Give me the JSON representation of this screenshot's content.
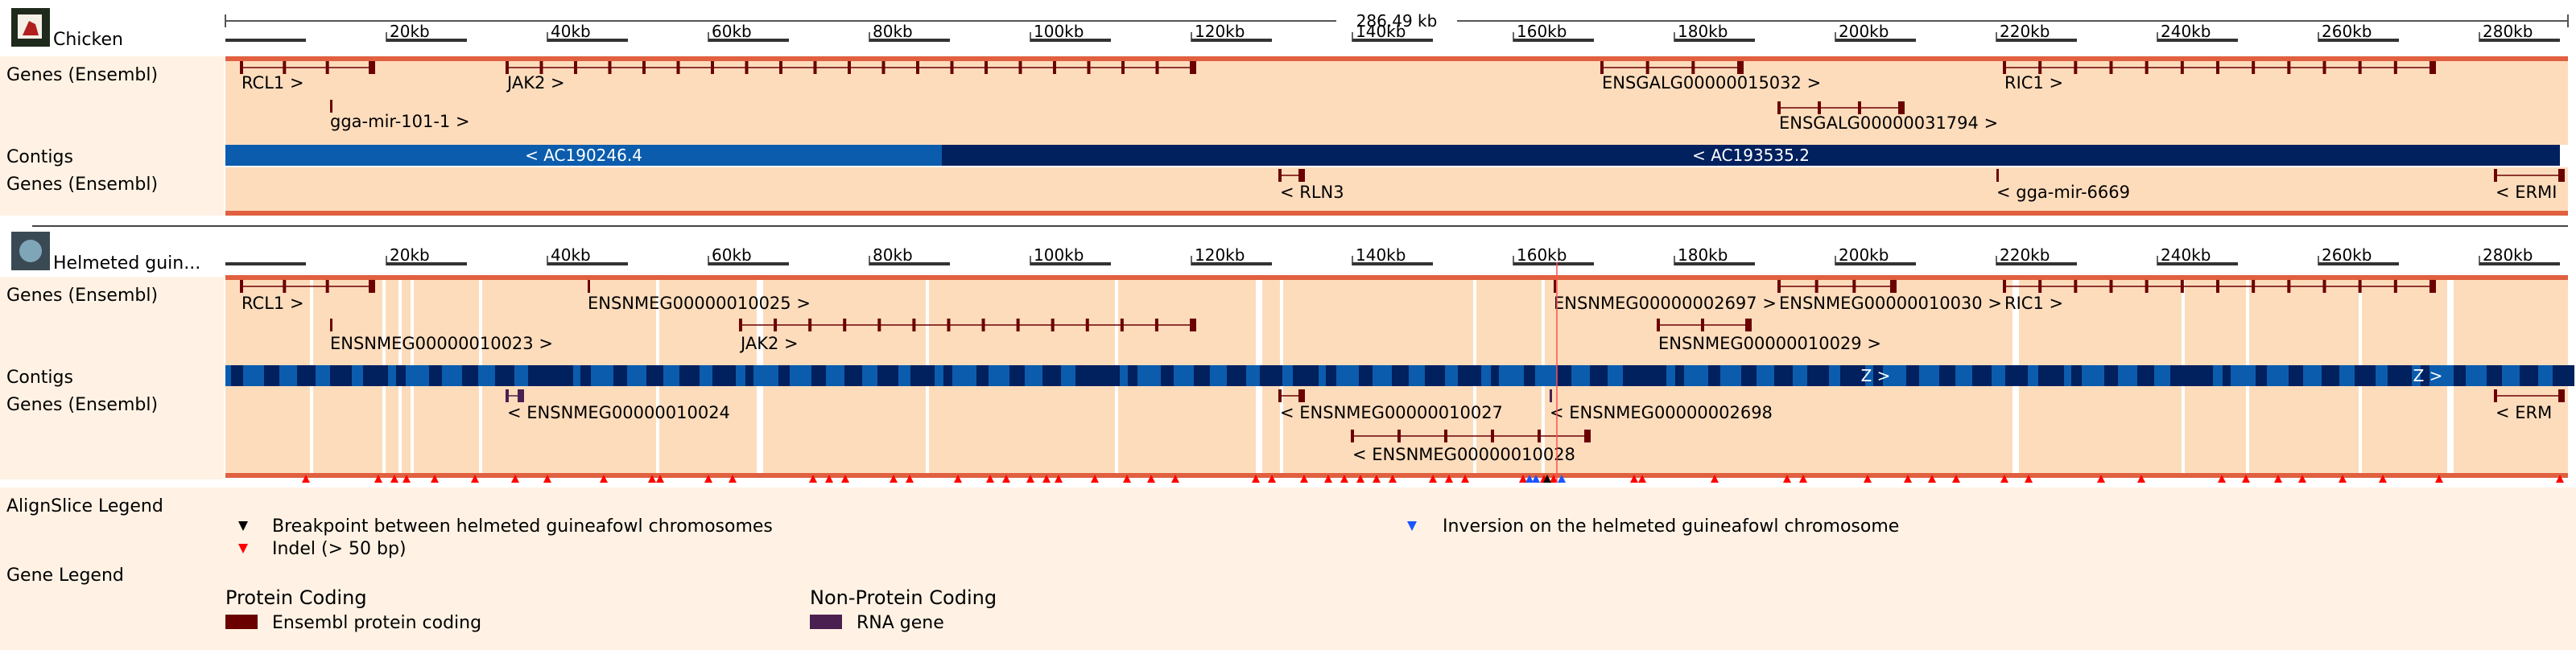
{
  "species": {
    "chicken": "Chicken",
    "guineafowl": "Helmeted guin..."
  },
  "track_labels": {
    "genes": "Genes (Ensembl)",
    "contigs": "Contigs",
    "alignslice_legend": "AlignSlice Legend",
    "gene_legend": "Gene Legend"
  },
  "ruler": {
    "span": "286.49 kb",
    "ticks": [
      "20kb",
      "40kb",
      "60kb",
      "80kb",
      "100kb",
      "120kb",
      "140kb",
      "160kb",
      "180kb",
      "200kb",
      "220kb",
      "240kb",
      "260kb",
      "280kb"
    ]
  },
  "chicken_genes_fwd": [
    {
      "label": "RCL1 >",
      "start": 2,
      "end": 18
    },
    {
      "label": "gga-mir-101-1 >",
      "start": 13,
      "end": 13.2
    },
    {
      "label": "JAK2 >",
      "start": 35,
      "end": 120
    },
    {
      "label": "ENSGALG00000015032 >",
      "start": 171,
      "end": 188
    },
    {
      "label": "ENSGALG00000031794 >",
      "start": 193,
      "end": 208
    },
    {
      "label": "RIC1 >",
      "start": 221,
      "end": 274
    }
  ],
  "chicken_contigs": [
    {
      "label": "< AC190246.4",
      "start": 0,
      "end": 89
    },
    {
      "label": "< AC193535.2",
      "start": 89,
      "end": 290
    }
  ],
  "chicken_genes_rev": [
    {
      "label": "< RLN3",
      "start": 131,
      "end": 133.5
    },
    {
      "label": "< gga-mir-6669",
      "start": 220,
      "end": 220.3
    },
    {
      "label": "< ERMI",
      "start": 282,
      "end": 290
    }
  ],
  "gf_genes_fwd": [
    {
      "label": "RCL1 >",
      "start": 2,
      "end": 18
    },
    {
      "label": "ENSNMEG00000010023 >",
      "start": 13,
      "end": 13.2
    },
    {
      "label": "ENSNMEG00000010025 >",
      "start": 45,
      "end": 45.2
    },
    {
      "label": "JAK2 >",
      "start": 64,
      "end": 120
    },
    {
      "label": "ENSNMEG00000002697 >",
      "start": 165,
      "end": 165.3
    },
    {
      "label": "ENSNMEG00000010030 >",
      "start": 193,
      "end": 207
    },
    {
      "label": "ENSNMEG00000010029 >",
      "start": 178,
      "end": 189
    },
    {
      "label": "RIC1 >",
      "start": 221,
      "end": 274
    }
  ],
  "gf_genes_rev": [
    {
      "label": "< ENSNMEG00000010024",
      "start": 35,
      "end": 36.5
    },
    {
      "label": "< ENSNMEG00000010027",
      "start": 131,
      "end": 133.5
    },
    {
      "label": "< ENSNMEG00000002698",
      "start": 164.5,
      "end": 164.8
    },
    {
      "label": "< ENSNMEG00000010028",
      "start": 140,
      "end": 169
    },
    {
      "label": "< ERM",
      "start": 282,
      "end": 290
    }
  ],
  "gf_contig_labels": [
    "Z >",
    "Z >"
  ],
  "alignslice_legend": {
    "breakpoint": "Breakpoint between helmeted guineafowl chromosomes",
    "inversion": "Inversion on the helmeted guineafowl chromosome",
    "indel": "Indel (> 50 bp)"
  },
  "gene_legend": {
    "protein_coding_title": "Protein Coding",
    "protein_coding_item": "Ensembl protein coding",
    "non_protein_title": "Non-Protein Coding",
    "non_protein_item": "RNA gene"
  },
  "colors": {
    "track_bg": "#fddcbc",
    "label_bg": "#fff2e4",
    "gene": "#6b0000",
    "rna": "#4a2050",
    "contig_light": "#0b5cad",
    "contig_dark": "#00205e",
    "indel": "#ff0000",
    "inversion": "#1a55ff",
    "breakpoint": "#000000"
  }
}
